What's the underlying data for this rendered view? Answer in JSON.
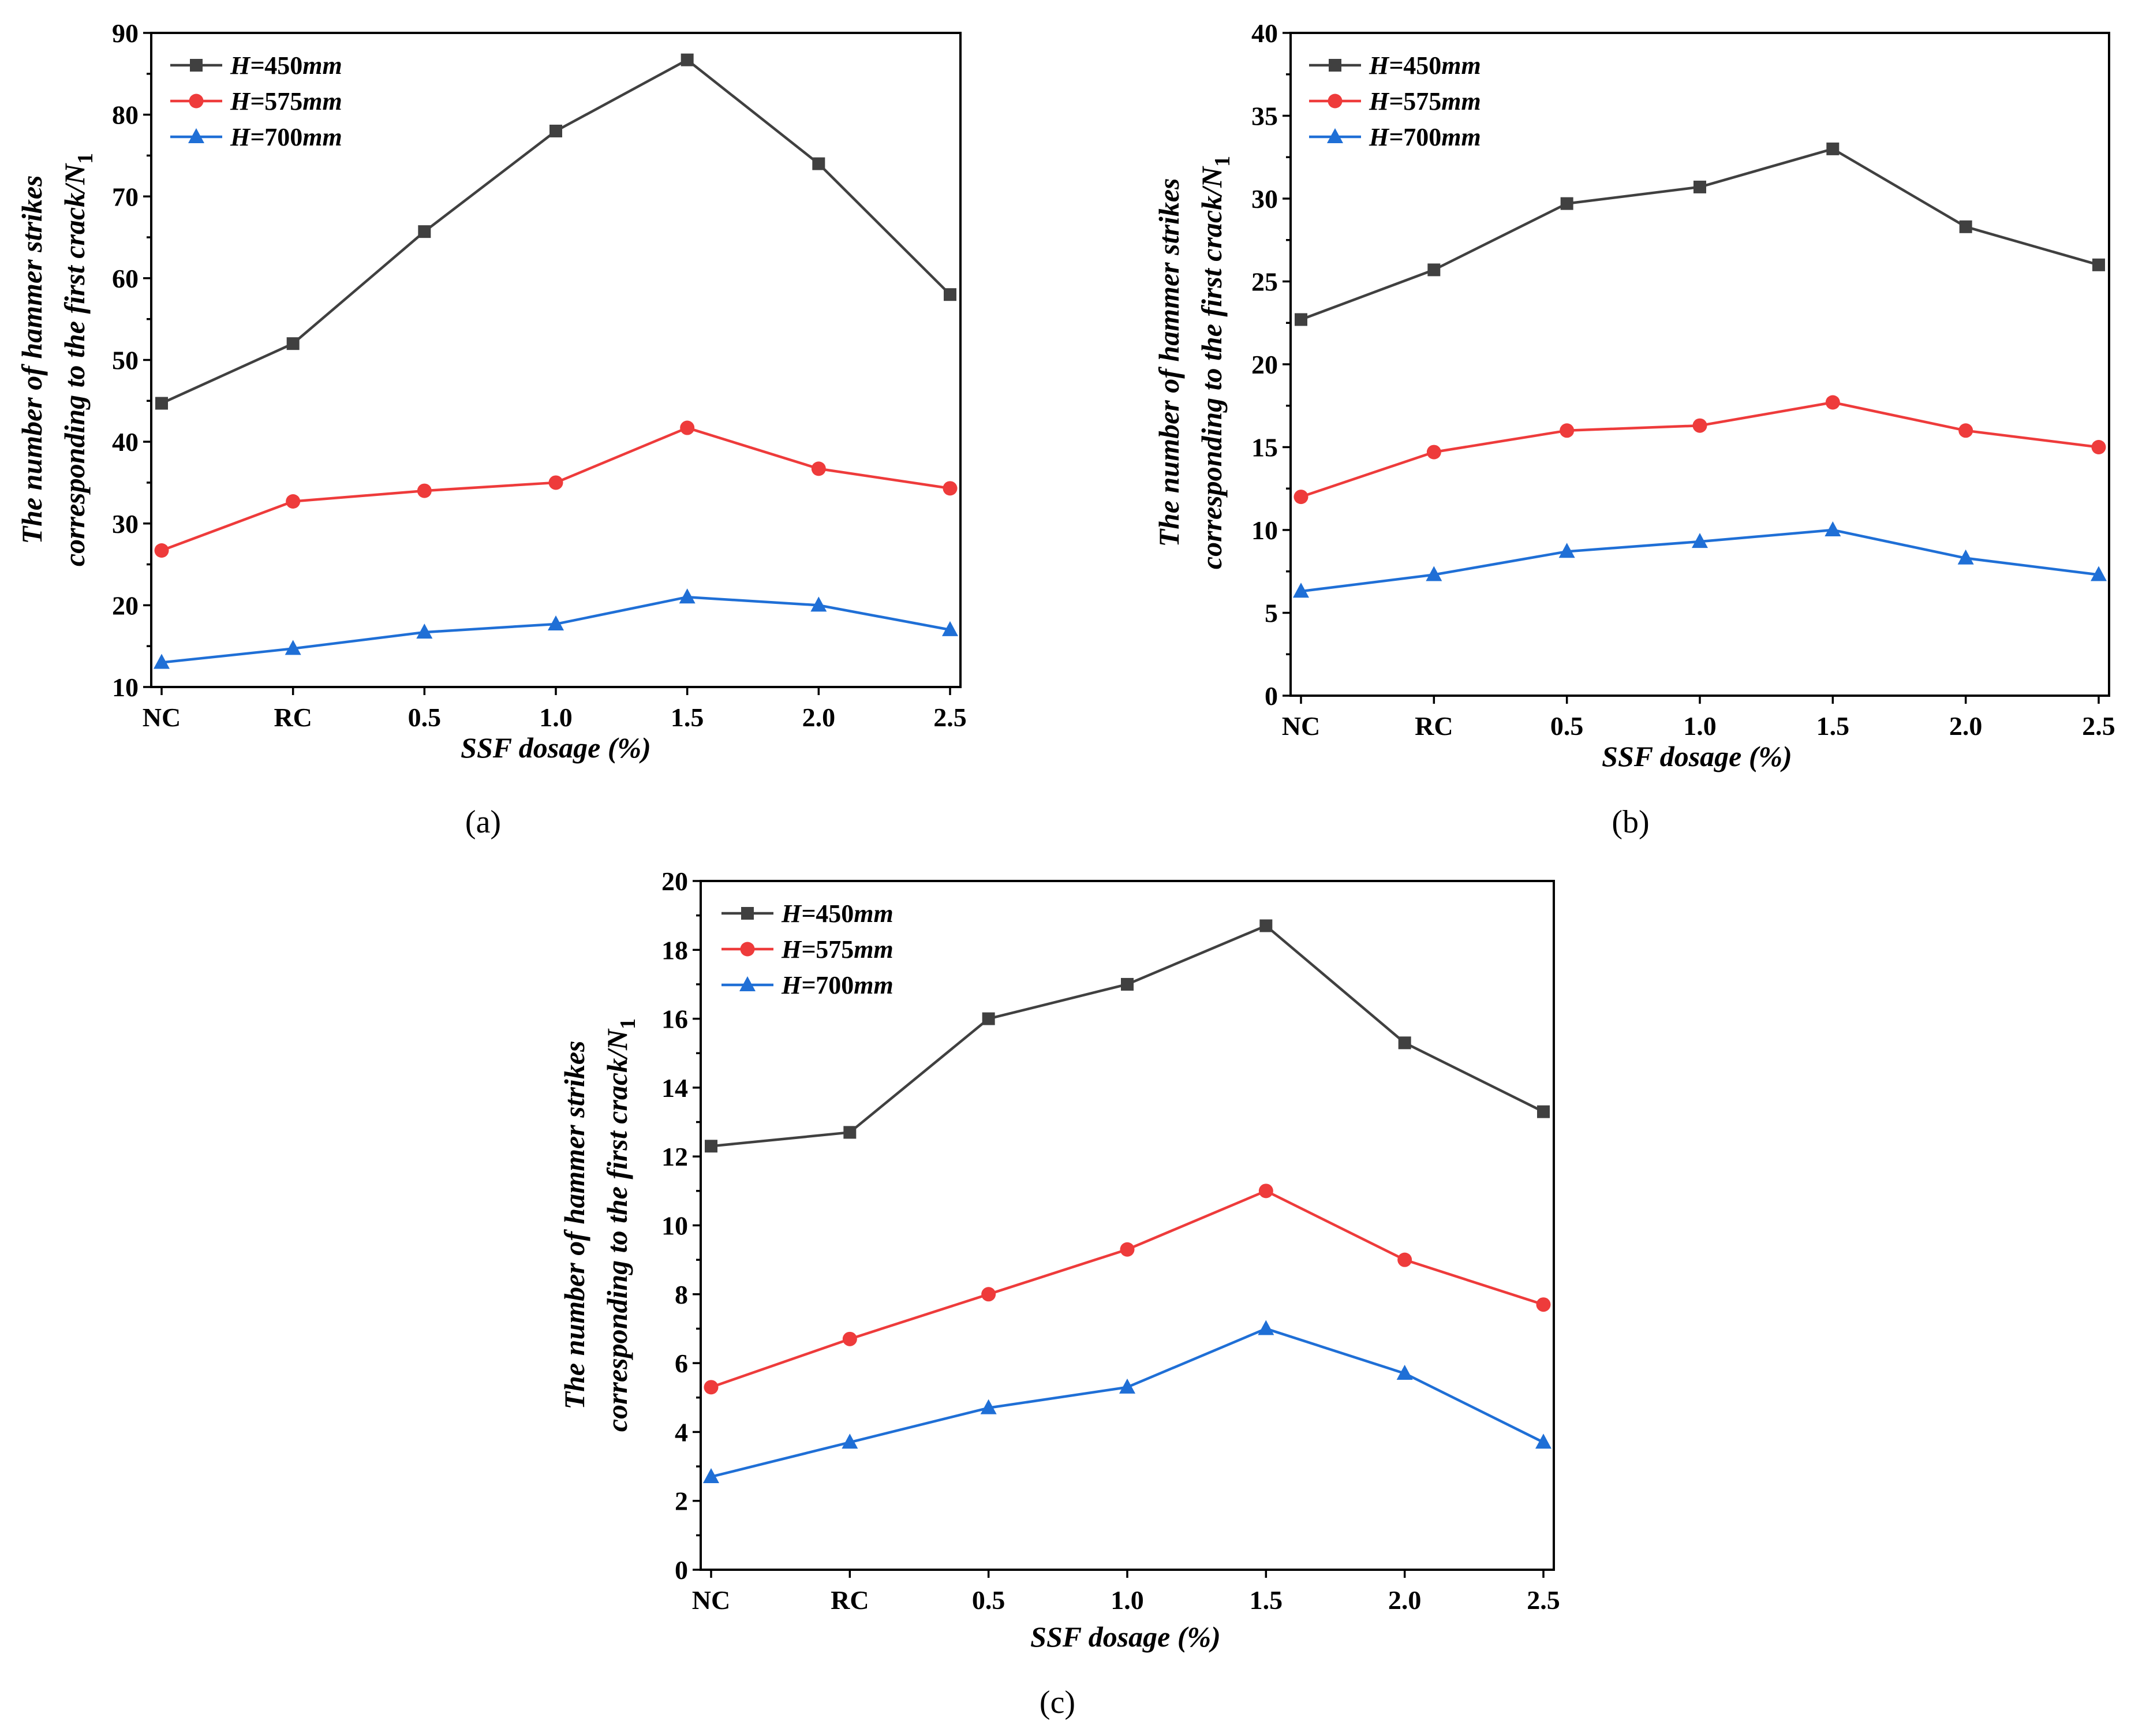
{
  "chart_data": [
    {
      "type": "line",
      "panel_label": "(a)",
      "categories": [
        "NC",
        "RC",
        "0.5",
        "1.0",
        "1.5",
        "2.0",
        "2.5"
      ],
      "series": [
        {
          "name": "H=450mm",
          "marker": "square",
          "color": "#404040",
          "values": [
            44.7,
            52.0,
            65.7,
            78.0,
            86.7,
            74.0,
            58.0
          ]
        },
        {
          "name": "H=575mm",
          "marker": "circle",
          "color": "#ee3b3b",
          "values": [
            26.7,
            32.7,
            34.0,
            35.0,
            41.7,
            36.7,
            34.3
          ]
        },
        {
          "name": "H=700mm",
          "marker": "triangle",
          "color": "#1f6fd6",
          "values": [
            13.0,
            14.7,
            16.7,
            17.7,
            21.0,
            20.0,
            17.0
          ]
        }
      ],
      "ylim": [
        10,
        90
      ],
      "yticks": [
        "10",
        "20",
        "30",
        "40",
        "50",
        "60",
        "70",
        "80",
        "90"
      ],
      "xlabel": "SSF dosage (%)",
      "ylabel_line1": "The number of hammer strikes",
      "ylabel_line2": "corresponding to the first crack/N",
      "ylabel_subscript": "1",
      "legend": "top-left"
    },
    {
      "type": "line",
      "panel_label": "(b)",
      "categories": [
        "NC",
        "RC",
        "0.5",
        "1.0",
        "1.5",
        "2.0",
        "2.5"
      ],
      "series": [
        {
          "name": "H=450mm",
          "marker": "square",
          "color": "#404040",
          "values": [
            22.7,
            25.7,
            29.7,
            30.7,
            33.0,
            28.3,
            26.0
          ]
        },
        {
          "name": "H=575mm",
          "marker": "circle",
          "color": "#ee3b3b",
          "values": [
            12.0,
            14.7,
            16.0,
            16.3,
            17.7,
            16.0,
            15.0
          ]
        },
        {
          "name": "H=700mm",
          "marker": "triangle",
          "color": "#1f6fd6",
          "values": [
            6.3,
            7.3,
            8.7,
            9.3,
            10.0,
            8.3,
            7.3
          ]
        }
      ],
      "ylim": [
        0,
        40
      ],
      "yticks": [
        "0",
        "5",
        "10",
        "15",
        "20",
        "25",
        "30",
        "35",
        "40"
      ],
      "xlabel": "SSF dosage (%)",
      "ylabel_line1": "The number of hammer strikes",
      "ylabel_line2": "corresponding to the first crack/N",
      "ylabel_subscript": "1",
      "legend": "top-left"
    },
    {
      "type": "line",
      "panel_label": "(c)",
      "categories": [
        "NC",
        "RC",
        "0.5",
        "1.0",
        "1.5",
        "2.0",
        "2.5"
      ],
      "series": [
        {
          "name": "H=450mm",
          "marker": "square",
          "color": "#404040",
          "values": [
            12.3,
            12.7,
            16.0,
            17.0,
            18.7,
            15.3,
            13.3
          ]
        },
        {
          "name": "H=575mm",
          "marker": "circle",
          "color": "#ee3b3b",
          "values": [
            5.3,
            6.7,
            8.0,
            9.3,
            11.0,
            9.0,
            7.7
          ]
        },
        {
          "name": "H=700mm",
          "marker": "triangle",
          "color": "#1f6fd6",
          "values": [
            2.7,
            3.7,
            4.7,
            5.3,
            7.0,
            5.7,
            3.7
          ]
        }
      ],
      "ylim": [
        0,
        20
      ],
      "yticks": [
        "0",
        "2",
        "4",
        "6",
        "8",
        "10",
        "12",
        "14",
        "16",
        "18",
        "20"
      ],
      "xlabel": "SSF dosage (%)",
      "ylabel_line1": "The number of hammer strikes",
      "ylabel_line2": "corresponding to the first crack/N",
      "ylabel_subscript": "1",
      "legend": "top-left"
    }
  ]
}
